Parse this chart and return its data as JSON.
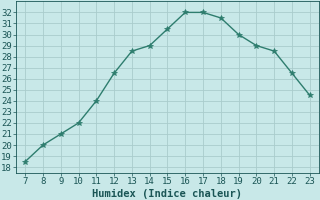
{
  "x": [
    7,
    8,
    9,
    10,
    11,
    12,
    13,
    14,
    15,
    16,
    17,
    18,
    19,
    20,
    21,
    22,
    23
  ],
  "y": [
    18.5,
    20.0,
    21.0,
    22.0,
    24.0,
    26.5,
    28.5,
    29.0,
    30.5,
    32.0,
    32.0,
    31.5,
    30.0,
    29.0,
    28.5,
    26.5,
    24.5
  ],
  "line_color": "#2e7d6e",
  "marker": "*",
  "marker_size": 4,
  "bg_color": "#c8e8e8",
  "grid_color": "#aacccc",
  "xlabel": "Humidex (Indice chaleur)",
  "xlim": [
    6.5,
    23.5
  ],
  "ylim": [
    17.5,
    33.0
  ],
  "yticks": [
    18,
    19,
    20,
    21,
    22,
    23,
    24,
    25,
    26,
    27,
    28,
    29,
    30,
    31,
    32
  ],
  "xticks": [
    7,
    8,
    9,
    10,
    11,
    12,
    13,
    14,
    15,
    16,
    17,
    18,
    19,
    20,
    21,
    22,
    23
  ],
  "font_color": "#1a5555",
  "xlabel_fontsize": 7.5,
  "tick_fontsize": 6.5
}
